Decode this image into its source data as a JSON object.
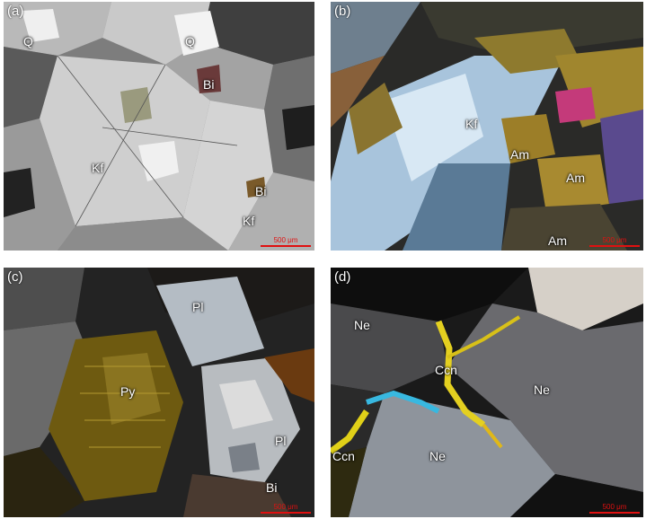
{
  "colors": {
    "scale_bar": "#e01010",
    "label_text": "#ffffff"
  },
  "panels": [
    {
      "id": "a",
      "label": "(a)",
      "scale": "500 μm",
      "minerals": [
        "Q",
        "Q",
        "Bi",
        "Kf",
        "Bi",
        "Kf"
      ]
    },
    {
      "id": "b",
      "label": "(b)",
      "scale": "500 μm",
      "minerals": [
        "Kf",
        "Am",
        "Am",
        "Am"
      ]
    },
    {
      "id": "c",
      "label": "(c)",
      "scale": "500 μm",
      "minerals": [
        "Pl",
        "Py",
        "Pl",
        "Bi"
      ]
    },
    {
      "id": "d",
      "label": "(d)",
      "scale": "500 μm",
      "minerals": [
        "Ne",
        "Ccn",
        "Ne",
        "Ccn",
        "Ne"
      ]
    }
  ]
}
